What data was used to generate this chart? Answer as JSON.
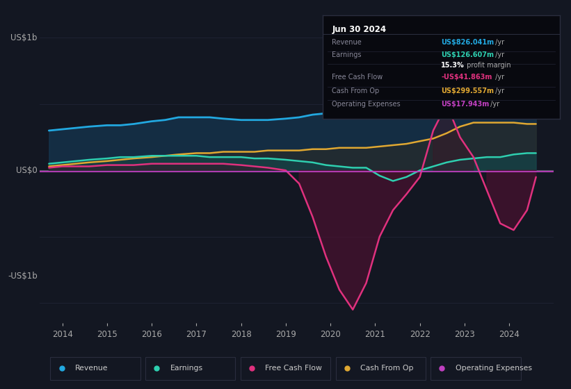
{
  "background_color": "#131722",
  "plot_bg_color": "#131722",
  "ylabel_top": "US$1b",
  "ylabel_bottom": "-US$1b",
  "ylabel_zero": "US$0",
  "ylim": [
    -1.15,
    1.05
  ],
  "xlim": [
    2013.5,
    2025.0
  ],
  "xticks": [
    2014,
    2015,
    2016,
    2017,
    2018,
    2019,
    2020,
    2021,
    2022,
    2023,
    2024
  ],
  "colors": {
    "revenue": "#22a8e0",
    "earnings": "#2ecfb0",
    "free_cash_flow": "#e0317e",
    "cash_from_op": "#e0a832",
    "operating_expenses": "#c040c0",
    "revenue_fill": "#163a55",
    "earnings_fill": "#1a4a40",
    "free_cash_flow_fill_neg": "#4a1030",
    "free_cash_flow_fill_pos": "#3a1828",
    "zero_line": "#cccccc",
    "grid": "#1e2233"
  },
  "legend": [
    {
      "label": "Revenue",
      "color": "#22a8e0"
    },
    {
      "label": "Earnings",
      "color": "#2ecfb0"
    },
    {
      "label": "Free Cash Flow",
      "color": "#e0317e"
    },
    {
      "label": "Cash From Op",
      "color": "#e0a832"
    },
    {
      "label": "Operating Expenses",
      "color": "#c040c0"
    }
  ],
  "info_box": {
    "title": "Jun 30 2024",
    "title_color": "#ffffff",
    "bg": "#08090f",
    "border": "#2a2d3e",
    "rows": [
      {
        "label": "Revenue",
        "value": "US$826.041m",
        "suffix": " /yr",
        "value_color": "#22a8e0",
        "label_color": "#888899"
      },
      {
        "label": "Earnings",
        "value": "US$126.607m",
        "suffix": " /yr",
        "value_color": "#2ecfb0",
        "label_color": "#888899"
      },
      {
        "label": "",
        "value": "15.3%",
        "suffix": " profit margin",
        "value_color": "#ffffff",
        "label_color": "#888899"
      },
      {
        "label": "Free Cash Flow",
        "value": "-US$41.863m",
        "suffix": " /yr",
        "value_color": "#e0317e",
        "label_color": "#888899"
      },
      {
        "label": "Cash From Op",
        "value": "US$299.557m",
        "suffix": " /yr",
        "value_color": "#e0a832",
        "label_color": "#888899"
      },
      {
        "label": "Operating Expenses",
        "value": "US$17.943m",
        "suffix": " /yr",
        "value_color": "#c040c0",
        "label_color": "#888899"
      }
    ]
  },
  "series": {
    "years": [
      2013.7,
      2014.0,
      2014.3,
      2014.6,
      2015.0,
      2015.3,
      2015.6,
      2016.0,
      2016.3,
      2016.6,
      2017.0,
      2017.3,
      2017.6,
      2018.0,
      2018.3,
      2018.6,
      2019.0,
      2019.3,
      2019.6,
      2019.9,
      2020.2,
      2020.5,
      2020.8,
      2021.1,
      2021.4,
      2021.7,
      2022.0,
      2022.3,
      2022.6,
      2022.9,
      2023.2,
      2023.5,
      2023.8,
      2024.1,
      2024.4,
      2024.6
    ],
    "revenue": [
      0.3,
      0.31,
      0.32,
      0.33,
      0.34,
      0.34,
      0.35,
      0.37,
      0.38,
      0.4,
      0.4,
      0.4,
      0.39,
      0.38,
      0.38,
      0.38,
      0.39,
      0.4,
      0.42,
      0.43,
      0.44,
      0.45,
      0.46,
      0.47,
      0.49,
      0.52,
      0.55,
      0.59,
      0.63,
      0.67,
      0.7,
      0.73,
      0.77,
      0.82,
      0.85,
      0.87
    ],
    "earnings": [
      0.05,
      0.06,
      0.07,
      0.08,
      0.09,
      0.1,
      0.1,
      0.11,
      0.11,
      0.11,
      0.11,
      0.1,
      0.1,
      0.1,
      0.09,
      0.09,
      0.08,
      0.07,
      0.06,
      0.04,
      0.03,
      0.02,
      0.02,
      -0.04,
      -0.08,
      -0.05,
      0.0,
      0.03,
      0.06,
      0.08,
      0.09,
      0.1,
      0.1,
      0.12,
      0.13,
      0.13
    ],
    "free_cash_flow": [
      0.02,
      0.03,
      0.03,
      0.03,
      0.04,
      0.04,
      0.04,
      0.05,
      0.05,
      0.05,
      0.05,
      0.05,
      0.05,
      0.04,
      0.03,
      0.02,
      0.0,
      -0.1,
      -0.35,
      -0.65,
      -0.9,
      -1.05,
      -0.85,
      -0.5,
      -0.3,
      -0.18,
      -0.05,
      0.3,
      0.5,
      0.25,
      0.1,
      -0.15,
      -0.4,
      -0.45,
      -0.3,
      -0.05
    ],
    "cash_from_op": [
      0.03,
      0.04,
      0.05,
      0.06,
      0.07,
      0.08,
      0.09,
      0.1,
      0.11,
      0.12,
      0.13,
      0.13,
      0.14,
      0.14,
      0.14,
      0.15,
      0.15,
      0.15,
      0.16,
      0.16,
      0.17,
      0.17,
      0.17,
      0.18,
      0.19,
      0.2,
      0.22,
      0.24,
      0.28,
      0.33,
      0.36,
      0.36,
      0.36,
      0.36,
      0.35,
      0.35
    ],
    "operating_expenses": [
      -0.01,
      -0.01,
      -0.01,
      -0.01,
      -0.01,
      -0.01,
      -0.01,
      -0.01,
      -0.01,
      -0.01,
      -0.01,
      -0.01,
      -0.01,
      -0.01,
      -0.01,
      -0.01,
      -0.01,
      -0.01,
      -0.01,
      -0.01,
      -0.01,
      -0.01,
      -0.01,
      -0.01,
      -0.01,
      -0.01,
      -0.01,
      -0.01,
      -0.01,
      -0.01,
      -0.01,
      -0.01,
      -0.01,
      -0.01,
      -0.01,
      -0.01
    ]
  }
}
